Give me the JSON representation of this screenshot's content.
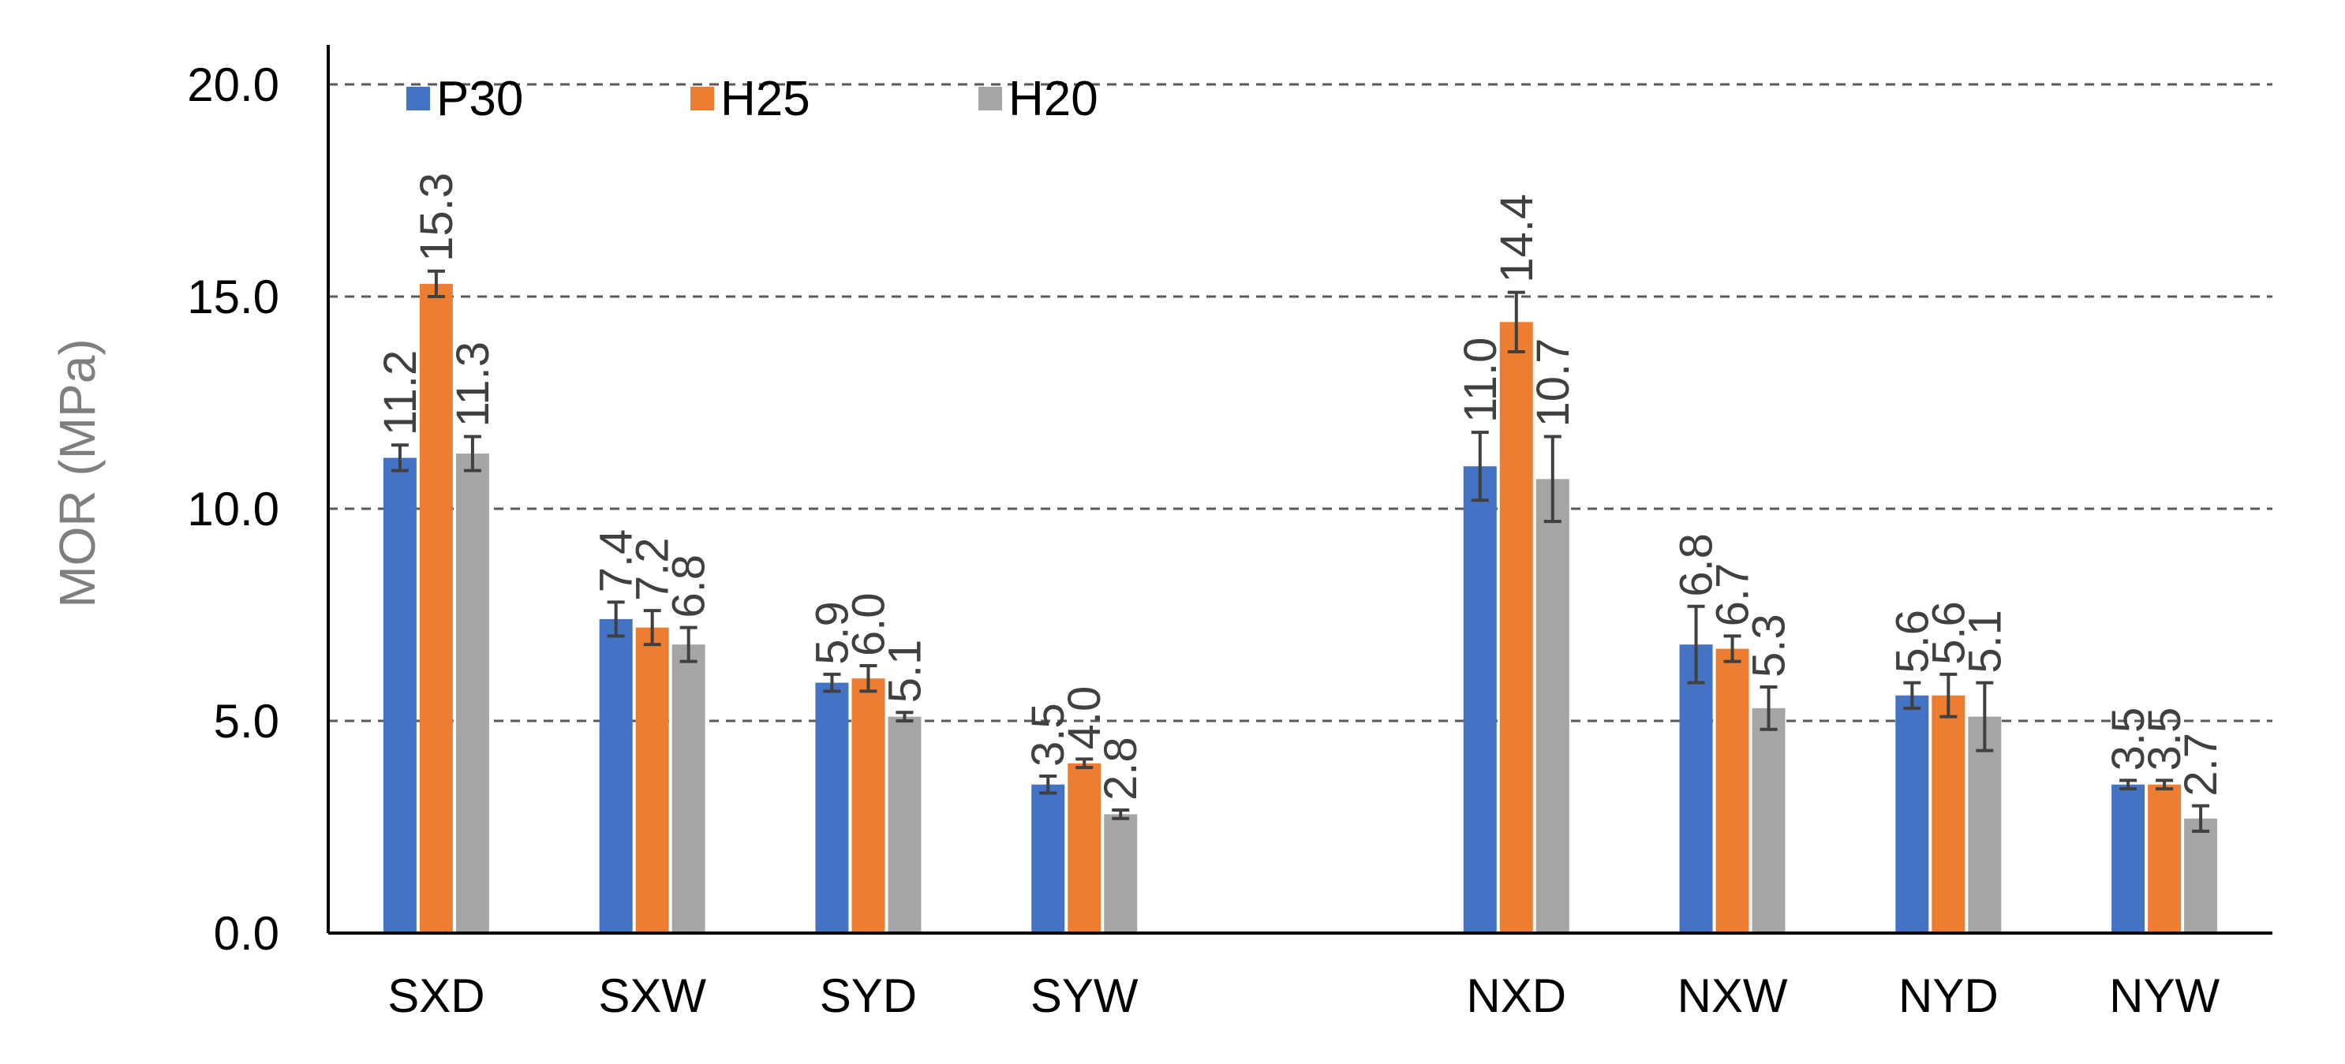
{
  "colors": {
    "P30": "#4472c4",
    "H25": "#ed7d31",
    "H20": "#a5a5a5",
    "grid": "#595959",
    "axis": "#000000",
    "error_bar": "#404040",
    "data_label": "#404040",
    "axis_title": "#7f7f7f"
  },
  "chart_data": {
    "type": "bar",
    "title": "",
    "xlabel": "",
    "ylabel": "MOR (MPa)",
    "ylim": [
      0,
      20
    ],
    "yticks": [
      "0.0",
      "5.0",
      "10.0",
      "15.0",
      "20.0"
    ],
    "grid": true,
    "legend_position": "top-left",
    "categories": [
      "SXD",
      "SXW",
      "SYD",
      "SYW",
      "",
      "NXD",
      "NXW",
      "NYD",
      "NYW"
    ],
    "series": [
      {
        "name": "P30",
        "values": [
          11.2,
          7.4,
          5.9,
          3.5,
          null,
          11.0,
          6.8,
          5.6,
          3.5
        ],
        "labels": [
          "11.2",
          "7.4",
          "5.9",
          "3.5",
          null,
          "11.0",
          "6.8",
          "5.6",
          "3.5"
        ],
        "errors": [
          0.3,
          0.4,
          0.2,
          0.2,
          null,
          0.8,
          0.9,
          0.3,
          0.1
        ]
      },
      {
        "name": "H25",
        "values": [
          15.3,
          7.2,
          6.0,
          4.0,
          null,
          14.4,
          6.7,
          5.6,
          3.5
        ],
        "labels": [
          "15.3",
          "7.2",
          "6.0",
          "4.0",
          null,
          "14.4",
          "6.7",
          "5.6",
          "3.5"
        ],
        "errors": [
          0.3,
          0.4,
          0.3,
          0.1,
          null,
          0.7,
          0.3,
          0.5,
          0.1
        ]
      },
      {
        "name": "H20",
        "values": [
          11.3,
          6.8,
          5.1,
          2.8,
          null,
          10.7,
          5.3,
          5.1,
          2.7
        ],
        "labels": [
          "11.3",
          "6.8",
          "5.1",
          "2.8",
          null,
          "10.7",
          "5.3",
          "5.1",
          "2.7"
        ],
        "errors": [
          0.4,
          0.4,
          0.1,
          0.1,
          null,
          1.0,
          0.5,
          0.8,
          0.3
        ]
      }
    ]
  }
}
